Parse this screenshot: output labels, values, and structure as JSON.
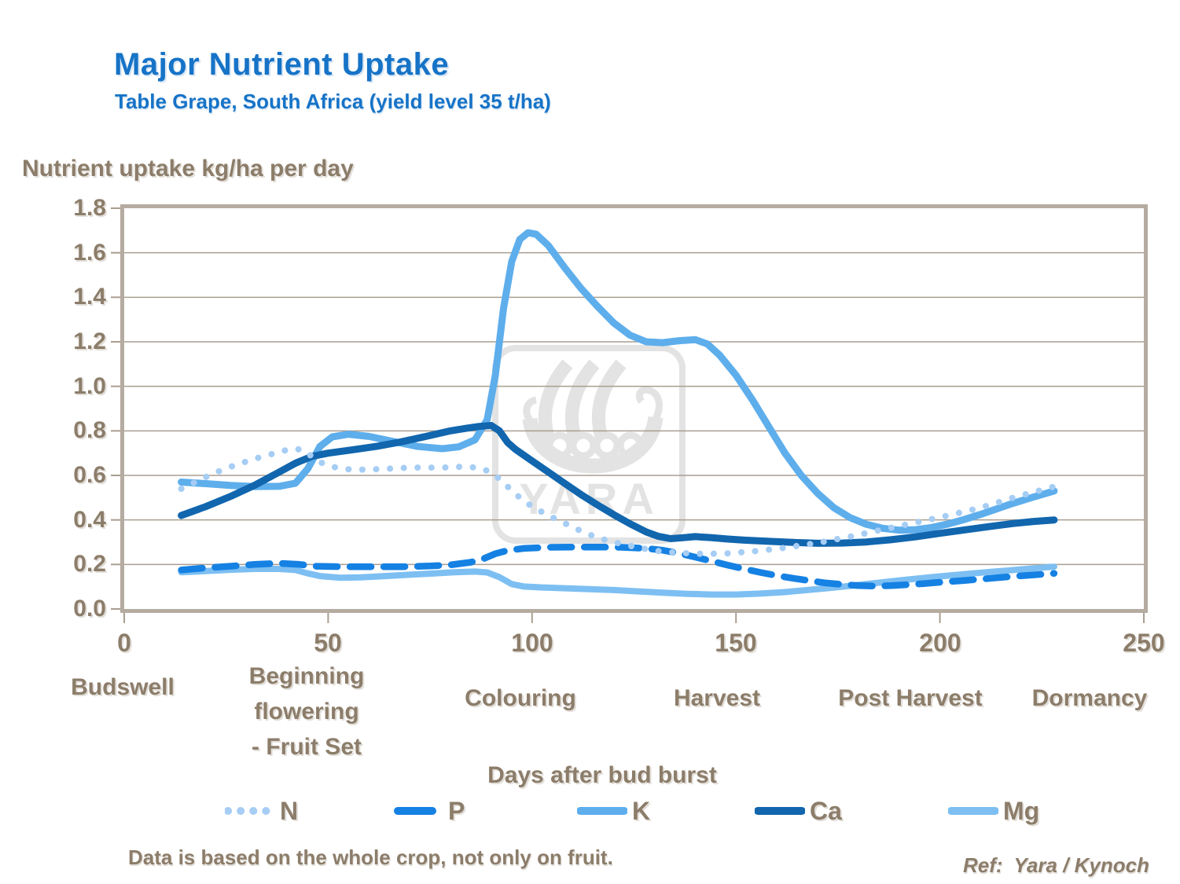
{
  "header": {
    "title": "Major Nutrient Uptake",
    "subtitle": "Table Grape, South Africa (yield level 35 t/ha)"
  },
  "chart_data": {
    "type": "line",
    "title": "Major Nutrient Uptake",
    "subtitle": "Table Grape, South Africa (yield level 35 t/ha)",
    "grid": true,
    "legend_position": "bottom",
    "watermark": "YARA",
    "y_axis": {
      "label": "Nutrient uptake kg/ha per day",
      "min": 0,
      "max": 1.8,
      "ticks": [
        "1.8",
        "1.6",
        "1.4",
        "1.2",
        "1.0",
        "0.8",
        "0.6",
        "0.4",
        "0.2",
        "0.0"
      ]
    },
    "x_axis": {
      "label": "Days after bud burst",
      "min": 0,
      "max": 250,
      "ticks": [
        "0",
        "50",
        "100",
        "150",
        "200",
        "250"
      ]
    },
    "stages": [
      {
        "x_day": 0,
        "lines": [
          "Budswell"
        ]
      },
      {
        "x_day": 45,
        "lines": [
          "Beginning",
          "flowering",
          "- Fruit Set"
        ]
      },
      {
        "x_day": 97,
        "lines": [
          "Colouring"
        ]
      },
      {
        "x_day": 145,
        "lines": [
          "Harvest"
        ]
      },
      {
        "x_day": 193,
        "lines": [
          "Post Harvest"
        ]
      },
      {
        "x_day": 237,
        "lines": [
          "Dormancy"
        ]
      }
    ],
    "series": [
      {
        "name": "N",
        "style": "dotted",
        "color": "#A6CDF4",
        "width": 8,
        "dash": "0.1 17.5",
        "legend_dash": "0.1 16",
        "z": 5,
        "points": [
          [
            14,
            0.54
          ],
          [
            18,
            0.575
          ],
          [
            22,
            0.61
          ],
          [
            27,
            0.645
          ],
          [
            32,
            0.675
          ],
          [
            37,
            0.7
          ],
          [
            41,
            0.72
          ],
          [
            44,
            0.715
          ],
          [
            46,
            0.685
          ],
          [
            49,
            0.65
          ],
          [
            52,
            0.635
          ],
          [
            56,
            0.625
          ],
          [
            62,
            0.628
          ],
          [
            70,
            0.635
          ],
          [
            78,
            0.635
          ],
          [
            84,
            0.64
          ],
          [
            88,
            0.63
          ],
          [
            91,
            0.6
          ],
          [
            94,
            0.55
          ],
          [
            97,
            0.5
          ],
          [
            100,
            0.46
          ],
          [
            104,
            0.42
          ],
          [
            108,
            0.385
          ],
          [
            112,
            0.35
          ],
          [
            116,
            0.32
          ],
          [
            120,
            0.3
          ],
          [
            125,
            0.28
          ],
          [
            130,
            0.262
          ],
          [
            136,
            0.252
          ],
          [
            142,
            0.247
          ],
          [
            148,
            0.25
          ],
          [
            155,
            0.26
          ],
          [
            162,
            0.275
          ],
          [
            170,
            0.297
          ],
          [
            178,
            0.325
          ],
          [
            186,
            0.357
          ],
          [
            194,
            0.388
          ],
          [
            202,
            0.42
          ],
          [
            210,
            0.455
          ],
          [
            218,
            0.5
          ],
          [
            223,
            0.525
          ],
          [
            228,
            0.55
          ]
        ]
      },
      {
        "name": "P",
        "style": "dashed",
        "color": "#1581E3",
        "width": 8.5,
        "dash": "27 16",
        "legend_dash": "44 30",
        "z": 2,
        "points": [
          [
            14,
            0.175
          ],
          [
            20,
            0.185
          ],
          [
            26,
            0.192
          ],
          [
            32,
            0.2
          ],
          [
            38,
            0.205
          ],
          [
            43,
            0.2
          ],
          [
            47,
            0.192
          ],
          [
            53,
            0.19
          ],
          [
            60,
            0.19
          ],
          [
            68,
            0.19
          ],
          [
            75,
            0.193
          ],
          [
            80,
            0.198
          ],
          [
            85,
            0.21
          ],
          [
            88,
            0.225
          ],
          [
            91,
            0.248
          ],
          [
            94,
            0.263
          ],
          [
            98,
            0.272
          ],
          [
            104,
            0.277
          ],
          [
            110,
            0.278
          ],
          [
            116,
            0.278
          ],
          [
            122,
            0.277
          ],
          [
            128,
            0.272
          ],
          [
            132,
            0.264
          ],
          [
            136,
            0.25
          ],
          [
            140,
            0.233
          ],
          [
            144,
            0.215
          ],
          [
            148,
            0.197
          ],
          [
            152,
            0.18
          ],
          [
            156,
            0.164
          ],
          [
            160,
            0.15
          ],
          [
            164,
            0.138
          ],
          [
            168,
            0.127
          ],
          [
            172,
            0.117
          ],
          [
            176,
            0.11
          ],
          [
            180,
            0.105
          ],
          [
            184,
            0.103
          ],
          [
            188,
            0.105
          ],
          [
            192,
            0.109
          ],
          [
            196,
            0.114
          ],
          [
            200,
            0.12
          ],
          [
            206,
            0.128
          ],
          [
            212,
            0.137
          ],
          [
            218,
            0.147
          ],
          [
            223,
            0.153
          ],
          [
            228,
            0.16
          ]
        ]
      },
      {
        "name": "K",
        "style": "solid",
        "color": "#5EAEEC",
        "width": 9,
        "z": 3,
        "points": [
          [
            14,
            0.57
          ],
          [
            20,
            0.563
          ],
          [
            26,
            0.555
          ],
          [
            32,
            0.55
          ],
          [
            38,
            0.551
          ],
          [
            42,
            0.565
          ],
          [
            45,
            0.63
          ],
          [
            48,
            0.73
          ],
          [
            51,
            0.773
          ],
          [
            55,
            0.785
          ],
          [
            60,
            0.775
          ],
          [
            66,
            0.752
          ],
          [
            72,
            0.73
          ],
          [
            78,
            0.72
          ],
          [
            82,
            0.728
          ],
          [
            86,
            0.76
          ],
          [
            89,
            0.85
          ],
          [
            91,
            1.05
          ],
          [
            93,
            1.35
          ],
          [
            95,
            1.56
          ],
          [
            97,
            1.66
          ],
          [
            99,
            1.69
          ],
          [
            101,
            1.683
          ],
          [
            104,
            1.632
          ],
          [
            108,
            1.533
          ],
          [
            112,
            1.44
          ],
          [
            116,
            1.36
          ],
          [
            120,
            1.285
          ],
          [
            124,
            1.23
          ],
          [
            128,
            1.2
          ],
          [
            132,
            1.196
          ],
          [
            136,
            1.205
          ],
          [
            140,
            1.21
          ],
          [
            143,
            1.19
          ],
          [
            146,
            1.14
          ],
          [
            150,
            1.05
          ],
          [
            154,
            0.94
          ],
          [
            158,
            0.82
          ],
          [
            162,
            0.7
          ],
          [
            166,
            0.6
          ],
          [
            170,
            0.52
          ],
          [
            174,
            0.455
          ],
          [
            178,
            0.41
          ],
          [
            182,
            0.38
          ],
          [
            186,
            0.362
          ],
          [
            190,
            0.354
          ],
          [
            194,
            0.356
          ],
          [
            198,
            0.366
          ],
          [
            202,
            0.382
          ],
          [
            206,
            0.402
          ],
          [
            210,
            0.425
          ],
          [
            214,
            0.45
          ],
          [
            218,
            0.475
          ],
          [
            223,
            0.503
          ],
          [
            228,
            0.53
          ]
        ]
      },
      {
        "name": "Ca",
        "style": "solid",
        "color": "#1166AE",
        "width": 9,
        "z": 4,
        "points": [
          [
            14,
            0.42
          ],
          [
            20,
            0.46
          ],
          [
            26,
            0.505
          ],
          [
            32,
            0.556
          ],
          [
            38,
            0.615
          ],
          [
            42,
            0.655
          ],
          [
            46,
            0.685
          ],
          [
            50,
            0.7
          ],
          [
            56,
            0.715
          ],
          [
            62,
            0.731
          ],
          [
            68,
            0.751
          ],
          [
            74,
            0.775
          ],
          [
            80,
            0.8
          ],
          [
            84,
            0.812
          ],
          [
            87,
            0.82
          ],
          [
            90,
            0.824
          ],
          [
            92,
            0.8
          ],
          [
            94,
            0.748
          ],
          [
            96,
            0.716
          ],
          [
            100,
            0.665
          ],
          [
            104,
            0.615
          ],
          [
            108,
            0.564
          ],
          [
            112,
            0.514
          ],
          [
            116,
            0.468
          ],
          [
            120,
            0.424
          ],
          [
            124,
            0.383
          ],
          [
            128,
            0.346
          ],
          [
            131,
            0.326
          ],
          [
            134,
            0.316
          ],
          [
            137,
            0.32
          ],
          [
            140,
            0.325
          ],
          [
            144,
            0.32
          ],
          [
            148,
            0.314
          ],
          [
            152,
            0.309
          ],
          [
            158,
            0.304
          ],
          [
            164,
            0.299
          ],
          [
            170,
            0.295
          ],
          [
            176,
            0.296
          ],
          [
            182,
            0.301
          ],
          [
            188,
            0.311
          ],
          [
            194,
            0.324
          ],
          [
            200,
            0.34
          ],
          [
            206,
            0.355
          ],
          [
            212,
            0.37
          ],
          [
            218,
            0.384
          ],
          [
            223,
            0.393
          ],
          [
            228,
            0.4
          ]
        ]
      },
      {
        "name": "Mg",
        "style": "solid",
        "color": "#7DBFF2",
        "width": 8,
        "z": 1,
        "points": [
          [
            14,
            0.165
          ],
          [
            20,
            0.17
          ],
          [
            26,
            0.176
          ],
          [
            32,
            0.18
          ],
          [
            38,
            0.18
          ],
          [
            42,
            0.175
          ],
          [
            45,
            0.16
          ],
          [
            48,
            0.148
          ],
          [
            53,
            0.14
          ],
          [
            58,
            0.142
          ],
          [
            64,
            0.148
          ],
          [
            70,
            0.154
          ],
          [
            76,
            0.16
          ],
          [
            81,
            0.165
          ],
          [
            86,
            0.168
          ],
          [
            89,
            0.164
          ],
          [
            92,
            0.143
          ],
          [
            95,
            0.112
          ],
          [
            98,
            0.101
          ],
          [
            102,
            0.097
          ],
          [
            108,
            0.093
          ],
          [
            114,
            0.089
          ],
          [
            120,
            0.085
          ],
          [
            126,
            0.079
          ],
          [
            132,
            0.073
          ],
          [
            138,
            0.068
          ],
          [
            144,
            0.065
          ],
          [
            150,
            0.065
          ],
          [
            156,
            0.069
          ],
          [
            162,
            0.076
          ],
          [
            168,
            0.086
          ],
          [
            174,
            0.096
          ],
          [
            180,
            0.108
          ],
          [
            186,
            0.12
          ],
          [
            192,
            0.132
          ],
          [
            198,
            0.143
          ],
          [
            204,
            0.153
          ],
          [
            210,
            0.163
          ],
          [
            216,
            0.172
          ],
          [
            222,
            0.181
          ],
          [
            228,
            0.19
          ]
        ]
      }
    ],
    "footnote": "Data is based on the whole crop, not only on fruit.",
    "reference": "Ref:  Yara / Kynoch"
  },
  "style": {
    "accent_blue": "#1673C7",
    "text_brown": "#8C7D6A",
    "gridline": "#A99E91",
    "frame": "#B6ABA0",
    "watermark_gray": "#E3E3E3"
  }
}
